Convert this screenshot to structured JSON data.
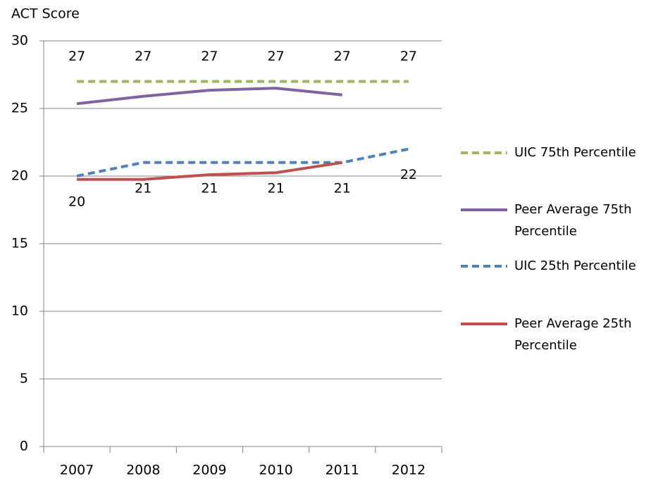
{
  "chart_data": {
    "type": "line",
    "y_label": "ACT Score",
    "categories": [
      "2007",
      "2008",
      "2009",
      "2010",
      "2011",
      "2012"
    ],
    "series": [
      {
        "name": "UIC 75th Percentile",
        "color": "#9bbb59",
        "dashed": true,
        "labels": "above",
        "values": [
          27,
          27,
          27,
          27,
          27,
          27
        ]
      },
      {
        "name": "Peer Average 75th Percentile",
        "color": "#8064a2",
        "dashed": false,
        "values": [
          25.35,
          25.9,
          26.35,
          26.5,
          26.0,
          null
        ]
      },
      {
        "name": "UIC 25th Percentile",
        "color": "#4f81bd",
        "dashed": true,
        "labels": "below",
        "values": [
          20,
          21,
          21,
          21,
          21,
          22
        ]
      },
      {
        "name": "Peer Average 25th Percentile",
        "color": "#c0504d",
        "dashed": false,
        "values": [
          19.75,
          19.75,
          20.1,
          20.25,
          21,
          null
        ]
      }
    ],
    "ylim": [
      0,
      30
    ],
    "yticks": [
      0,
      5,
      10,
      15,
      20,
      25,
      30
    ],
    "grid": true,
    "legend": "right"
  }
}
